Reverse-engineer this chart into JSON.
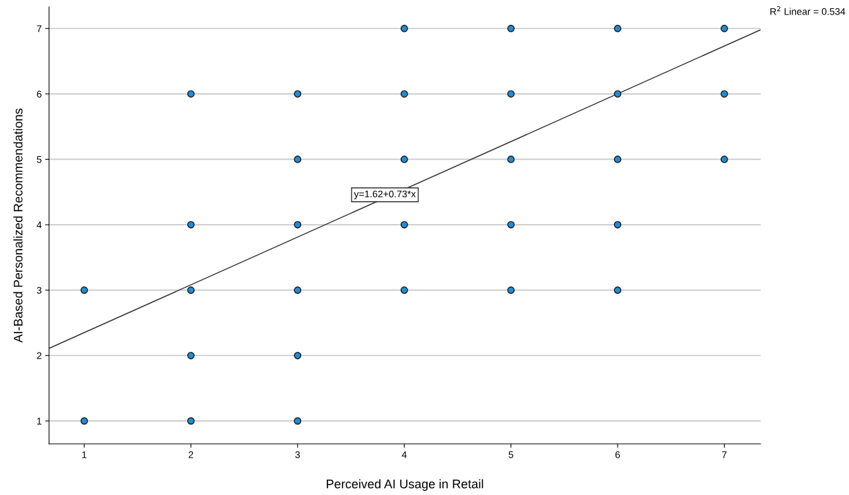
{
  "chart_data": {
    "type": "scatter",
    "xlabel": "Perceived AI Usage in Retail",
    "ylabel": "AI-Based Personalized Recommendations",
    "xlim": [
      0.67,
      7.34
    ],
    "ylim": [
      0.65,
      7.33
    ],
    "xticks": [
      1,
      2,
      3,
      4,
      5,
      6,
      7
    ],
    "yticks": [
      1,
      2,
      3,
      4,
      5,
      6,
      7
    ],
    "grid": "y",
    "legend": false,
    "series": [
      {
        "marker": "circle",
        "color": "#1f8dd6",
        "x": [
          1,
          1,
          2,
          2,
          2,
          2,
          2,
          3,
          3,
          3,
          3,
          3,
          3,
          4,
          4,
          4,
          4,
          4,
          5,
          5,
          5,
          5,
          5,
          6,
          6,
          6,
          6,
          6,
          7,
          7,
          7
        ],
        "values": [
          3,
          1,
          6,
          4,
          3,
          2,
          1,
          6,
          5,
          4,
          3,
          2,
          1,
          7,
          6,
          5,
          4,
          3,
          7,
          6,
          5,
          4,
          3,
          7,
          6,
          5,
          4,
          3,
          7,
          6,
          5
        ]
      },
      {
        "type": "line",
        "marker": "none",
        "color": "#333333",
        "x": [
          0.67,
          7.34
        ],
        "values": [
          2.11,
          6.98
        ]
      }
    ],
    "annotations": [
      "R$^{2}$ Linear = 0.534",
      "y=1.62+0.73*x"
    ]
  }
}
